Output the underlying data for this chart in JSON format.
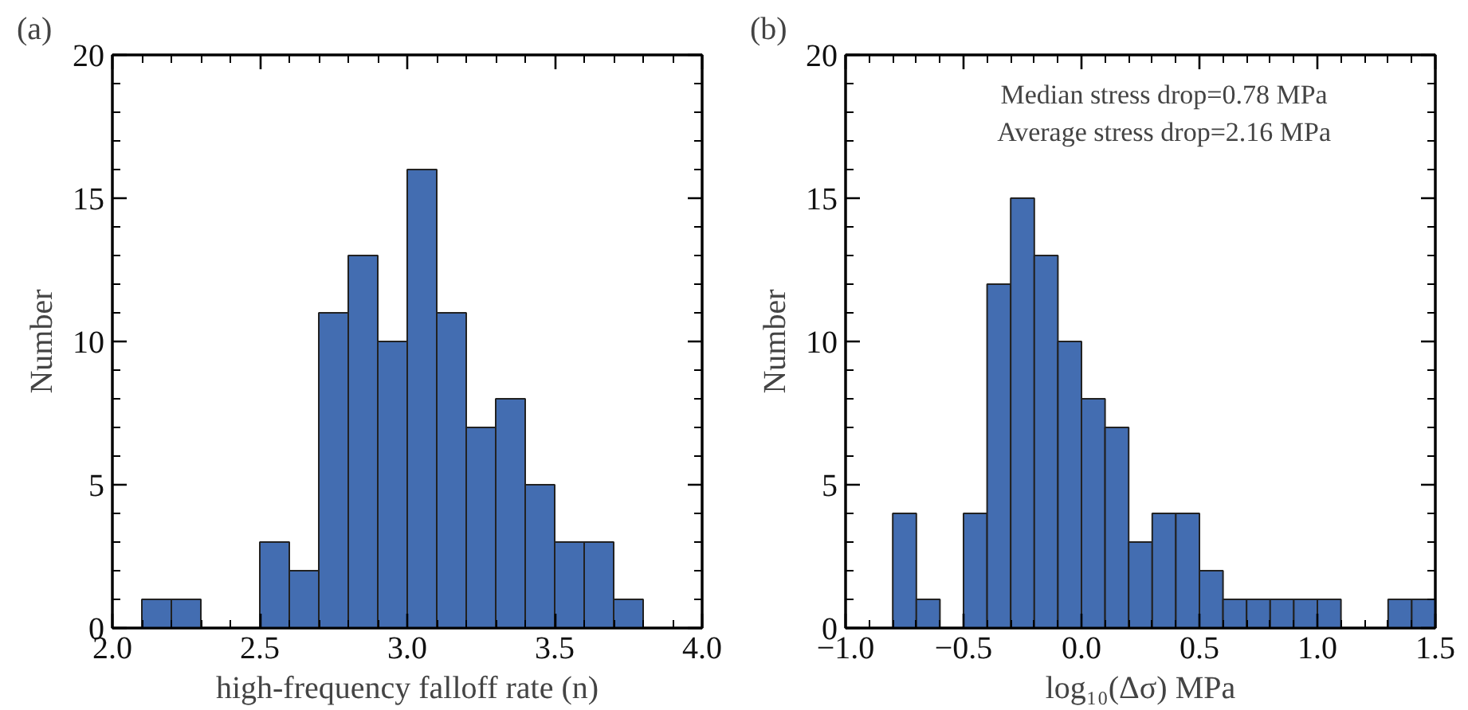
{
  "chart_data": [
    {
      "type": "histogram",
      "title": "(a)",
      "xlabel": "high-frequency falloff rate (n)",
      "ylabel": "Number",
      "color": "#436db1",
      "bins": [
        2.1,
        2.2,
        2.3,
        2.4,
        2.5,
        2.6,
        2.7,
        2.8,
        2.9,
        3.0,
        3.1,
        3.2,
        3.3,
        3.4,
        3.5,
        3.6,
        3.7,
        3.8
      ],
      "values": [
        1,
        1,
        0,
        0,
        3,
        2,
        11,
        13,
        10,
        16,
        11,
        7,
        8,
        5,
        3,
        3,
        1
      ],
      "xlim": [
        2.0,
        4.0
      ],
      "xticks": [
        {
          "value": 2.0,
          "label": "2.0"
        },
        2.5,
        {
          "value": 3.0,
          "label": "3.0"
        },
        3.5,
        {
          "value": 4.0,
          "label": "4.0"
        }
      ],
      "ylim": [
        0,
        20
      ],
      "yticks": [
        0,
        5,
        10,
        15,
        20
      ],
      "grid": false
    },
    {
      "type": "histogram",
      "title": "(b)",
      "xlabel": "log₁₀(Δσ) MPa",
      "ylabel": "Number",
      "color": "#436db1",
      "annotations": [
        "Median stress drop=0.78 MPa",
        "Average stress drop=2.16 MPa"
      ],
      "bins": [
        -0.8,
        -0.7,
        -0.6,
        -0.5,
        -0.4,
        -0.3,
        -0.2,
        -0.1,
        0.0,
        0.1,
        0.2,
        0.3,
        0.4,
        0.5,
        0.6,
        0.7,
        0.8,
        0.9,
        1.0,
        1.1,
        1.2,
        1.3,
        1.4,
        1.5
      ],
      "values": [
        4,
        1,
        0,
        4,
        12,
        15,
        13,
        10,
        8,
        7,
        3,
        4,
        4,
        2,
        1,
        1,
        1,
        1,
        1,
        0,
        0,
        1,
        1
      ],
      "xlim": [
        -1.0,
        1.5
      ],
      "xticks": [
        {
          "value": -1.0,
          "label": "−1.0"
        },
        {
          "value": -0.5,
          "label": "−0.5"
        },
        {
          "value": 0.0,
          "label": "0.0"
        },
        0.5,
        {
          "value": 1.0,
          "label": "1.0"
        },
        1.5
      ],
      "ylim": [
        0,
        20
      ],
      "yticks": [
        0,
        5,
        10,
        15,
        20
      ],
      "grid": false
    }
  ]
}
